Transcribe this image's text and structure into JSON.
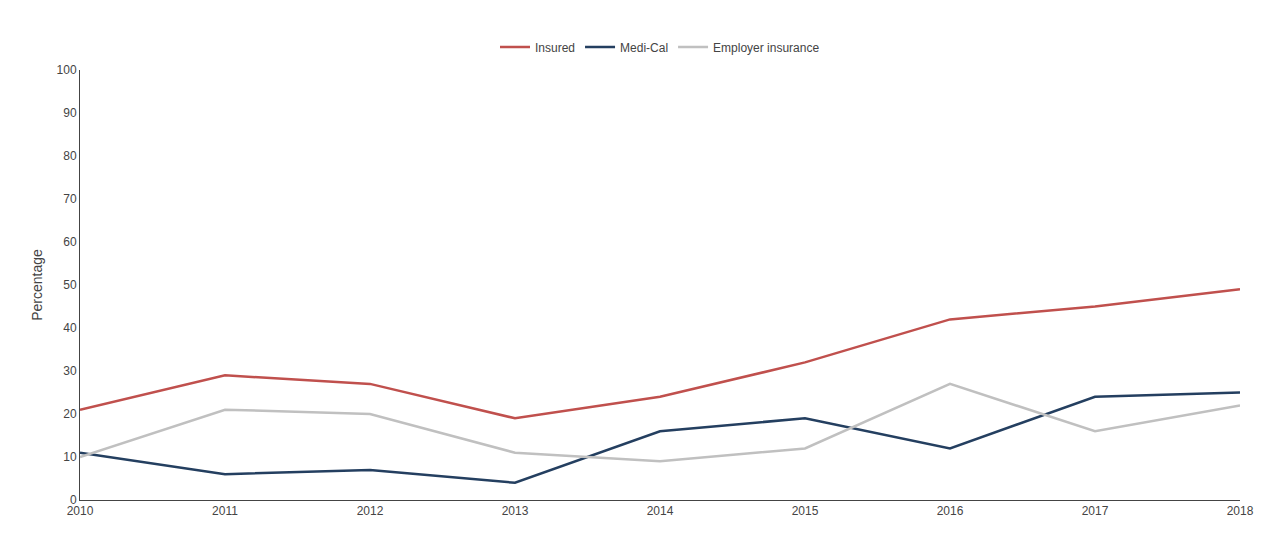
{
  "chart_data": {
    "type": "line",
    "x": [
      2010,
      2011,
      2012,
      2013,
      2014,
      2015,
      2016,
      2017,
      2018
    ],
    "series": [
      {
        "name": "Insured",
        "color": "#C0504D",
        "values": [
          21,
          29,
          27,
          19,
          24,
          32,
          42,
          45,
          49
        ]
      },
      {
        "name": "Medi-Cal",
        "color": "#243F60",
        "values": [
          11,
          6,
          7,
          4,
          16,
          19,
          12,
          24,
          25
        ]
      },
      {
        "name": "Employer insurance",
        "color": "#C0C0C0",
        "values": [
          10,
          21,
          20,
          11,
          9,
          12,
          27,
          16,
          22
        ]
      }
    ],
    "ylabel": "Percentage",
    "xlim": [
      2010,
      2018
    ],
    "xticks": [
      2010,
      2011,
      2012,
      2013,
      2014,
      2015,
      2016,
      2017,
      2018
    ],
    "ylim": [
      0,
      100
    ],
    "yticks": [
      0,
      10,
      20,
      30,
      40,
      50,
      60,
      70,
      80,
      90,
      100
    ],
    "grid": false,
    "legend": "top"
  }
}
